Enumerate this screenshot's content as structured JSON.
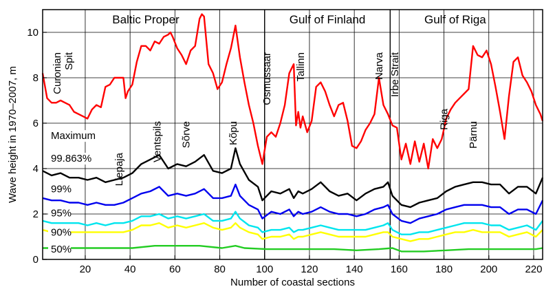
{
  "chart_data": {
    "type": "line",
    "title": "",
    "xlabel": "Number of coastal sections",
    "ylabel": "Wave height in 1970–2007, m",
    "xlim": [
      1,
      224
    ],
    "ylim": [
      0,
      11
    ],
    "xticks": [
      20,
      40,
      60,
      80,
      100,
      120,
      140,
      160,
      180,
      200,
      220
    ],
    "yticks": [
      0,
      2,
      4,
      6,
      8,
      10
    ],
    "grid": true,
    "regions": [
      {
        "label": "Baltic Proper",
        "x": 47
      },
      {
        "label": "Gulf of Finland",
        "x": 128
      },
      {
        "label": "Gulf of Riga",
        "x": 185
      }
    ],
    "region_dividers": [
      100,
      156
    ],
    "location_labels": [
      {
        "label": "Curonian Spit",
        "x": 8
      },
      {
        "label": "Liepaja",
        "x": 35
      },
      {
        "label": "Ventspils",
        "x": 52
      },
      {
        "label": "Sõrve",
        "x": 65
      },
      {
        "label": "Kõpu",
        "x": 86
      },
      {
        "label": "Osmussaar",
        "x": 101
      },
      {
        "label": "Tallinn",
        "x": 116
      },
      {
        "label": "Narva",
        "x": 151
      },
      {
        "label": "Irbe Strait",
        "x": 158
      },
      {
        "label": "Riga",
        "x": 180
      },
      {
        "label": "Pärnu",
        "x": 193
      }
    ],
    "series": [
      {
        "name": "Maximum",
        "color": "#ff0000",
        "x": [
          1,
          3,
          5,
          7,
          9,
          11,
          13,
          15,
          17,
          19,
          21,
          23,
          25,
          27,
          29,
          31,
          33,
          35,
          37,
          38,
          39,
          41,
          43,
          45,
          47,
          49,
          51,
          53,
          55,
          57,
          58,
          59,
          61,
          63,
          65,
          67,
          69,
          71,
          72,
          73,
          75,
          77,
          79,
          81,
          83,
          85,
          87,
          89,
          91,
          93,
          95,
          97,
          99,
          101,
          103,
          105,
          107,
          109,
          111,
          113,
          114,
          115,
          116,
          117,
          119,
          121,
          123,
          125,
          127,
          129,
          131,
          133,
          135,
          137,
          139,
          141,
          143,
          145,
          147,
          149,
          151,
          153,
          155,
          157,
          159,
          161,
          163,
          165,
          167,
          169,
          171,
          173,
          175,
          177,
          179,
          181,
          183,
          185,
          187,
          189,
          191,
          193,
          195,
          197,
          199,
          201,
          203,
          205,
          207,
          209,
          211,
          213,
          215,
          217,
          219,
          221,
          223,
          224
        ],
        "values": [
          8.2,
          7.1,
          6.9,
          6.9,
          7.0,
          6.9,
          6.8,
          6.5,
          6.4,
          6.3,
          6.2,
          6.6,
          6.8,
          6.7,
          7.6,
          7.7,
          8.0,
          8.0,
          8.0,
          7.1,
          7.4,
          7.7,
          8.7,
          9.4,
          9.4,
          9.2,
          9.6,
          9.5,
          9.8,
          9.9,
          10.0,
          9.8,
          9.3,
          9.0,
          8.6,
          9.2,
          9.4,
          10.6,
          10.8,
          10.7,
          8.6,
          8.2,
          7.5,
          7.8,
          8.6,
          9.3,
          10.3,
          8.9,
          7.8,
          6.8,
          6.0,
          5.0,
          4.2,
          5.4,
          5.6,
          5.4,
          6.0,
          6.8,
          8.2,
          8.6,
          5.9,
          6.5,
          5.8,
          6.3,
          5.6,
          6.1,
          7.6,
          7.8,
          7.4,
          6.8,
          6.3,
          6.8,
          6.9,
          6.1,
          5.0,
          4.9,
          5.2,
          5.7,
          6.0,
          6.4,
          8.0,
          6.8,
          6.4,
          5.9,
          5.8,
          4.4,
          5.1,
          4.2,
          5.2,
          4.3,
          5.1,
          4.0,
          5.3,
          4.9,
          5.3,
          6.2,
          6.6,
          6.9,
          7.1,
          7.3,
          7.5,
          9.4,
          9.0,
          8.9,
          9.2,
          8.6,
          7.6,
          6.5,
          5.3,
          7.2,
          8.7,
          8.9,
          8.1,
          7.8,
          7.4,
          6.8,
          6.4,
          6.1
        ]
      },
      {
        "name": "99.863%",
        "color": "#000000",
        "x": [
          1,
          5,
          9,
          13,
          17,
          21,
          25,
          29,
          33,
          37,
          41,
          45,
          49,
          53,
          57,
          61,
          65,
          69,
          73,
          77,
          81,
          85,
          87,
          89,
          93,
          97,
          99,
          103,
          107,
          111,
          113,
          115,
          117,
          121,
          125,
          129,
          133,
          137,
          141,
          145,
          149,
          153,
          155,
          157,
          161,
          165,
          169,
          173,
          177,
          181,
          185,
          189,
          193,
          197,
          201,
          205,
          209,
          213,
          217,
          221,
          224
        ],
        "values": [
          3.9,
          3.7,
          3.8,
          3.6,
          3.6,
          3.5,
          3.6,
          3.4,
          3.5,
          3.6,
          3.8,
          4.2,
          4.4,
          4.6,
          4.0,
          4.2,
          4.1,
          4.3,
          4.6,
          3.9,
          3.8,
          4.0,
          4.9,
          4.2,
          3.5,
          3.2,
          2.6,
          3.0,
          2.9,
          3.1,
          2.7,
          3.0,
          2.9,
          3.1,
          3.4,
          3.0,
          2.8,
          2.9,
          2.6,
          2.9,
          3.1,
          3.2,
          3.4,
          2.8,
          2.4,
          2.3,
          2.5,
          2.6,
          2.7,
          3.0,
          3.2,
          3.3,
          3.4,
          3.4,
          3.3,
          3.3,
          2.9,
          3.2,
          3.2,
          2.9,
          3.6
        ]
      },
      {
        "name": "99%",
        "color": "#0000ee",
        "x": [
          1,
          5,
          9,
          13,
          17,
          21,
          25,
          29,
          33,
          37,
          41,
          45,
          49,
          53,
          57,
          61,
          65,
          69,
          73,
          77,
          81,
          85,
          87,
          89,
          93,
          97,
          99,
          103,
          107,
          111,
          113,
          115,
          117,
          121,
          125,
          129,
          133,
          137,
          141,
          145,
          149,
          153,
          155,
          157,
          161,
          165,
          169,
          173,
          177,
          181,
          185,
          189,
          193,
          197,
          201,
          205,
          209,
          213,
          217,
          221,
          224
        ],
        "values": [
          2.7,
          2.6,
          2.6,
          2.5,
          2.5,
          2.4,
          2.5,
          2.4,
          2.4,
          2.5,
          2.7,
          2.9,
          3.0,
          3.2,
          2.8,
          2.9,
          2.8,
          2.9,
          3.1,
          2.7,
          2.7,
          2.8,
          3.3,
          2.8,
          2.4,
          2.2,
          1.8,
          2.1,
          2.0,
          2.2,
          1.9,
          2.1,
          2.0,
          2.1,
          2.3,
          2.1,
          2.0,
          2.0,
          1.9,
          2.0,
          2.2,
          2.3,
          2.4,
          2.0,
          1.7,
          1.6,
          1.8,
          1.9,
          2.0,
          2.2,
          2.3,
          2.4,
          2.4,
          2.4,
          2.3,
          2.3,
          2.0,
          2.2,
          2.2,
          2.0,
          2.6
        ]
      },
      {
        "name": "95%",
        "color": "#00e5ee",
        "x": [
          1,
          5,
          9,
          13,
          17,
          21,
          25,
          29,
          33,
          37,
          41,
          45,
          49,
          53,
          57,
          61,
          65,
          69,
          73,
          77,
          81,
          85,
          87,
          89,
          93,
          97,
          99,
          103,
          107,
          111,
          113,
          115,
          117,
          121,
          125,
          129,
          133,
          137,
          141,
          145,
          149,
          153,
          155,
          157,
          161,
          165,
          169,
          173,
          177,
          181,
          185,
          189,
          193,
          197,
          201,
          205,
          209,
          213,
          217,
          221,
          224
        ],
        "values": [
          1.7,
          1.6,
          1.6,
          1.6,
          1.6,
          1.5,
          1.6,
          1.5,
          1.6,
          1.6,
          1.7,
          1.9,
          1.9,
          2.0,
          1.8,
          1.9,
          1.8,
          1.9,
          2.0,
          1.7,
          1.7,
          1.8,
          2.1,
          1.8,
          1.5,
          1.4,
          1.2,
          1.3,
          1.3,
          1.4,
          1.2,
          1.3,
          1.3,
          1.4,
          1.5,
          1.4,
          1.3,
          1.3,
          1.3,
          1.3,
          1.4,
          1.5,
          1.6,
          1.3,
          1.1,
          1.1,
          1.2,
          1.2,
          1.3,
          1.4,
          1.5,
          1.6,
          1.6,
          1.6,
          1.5,
          1.5,
          1.3,
          1.4,
          1.5,
          1.3,
          1.7
        ]
      },
      {
        "name": "90%",
        "color": "#ffff00",
        "x": [
          1,
          5,
          9,
          13,
          17,
          21,
          25,
          29,
          33,
          37,
          41,
          45,
          49,
          53,
          57,
          61,
          65,
          69,
          73,
          77,
          81,
          85,
          87,
          89,
          93,
          97,
          99,
          103,
          107,
          111,
          113,
          115,
          117,
          121,
          125,
          129,
          133,
          137,
          141,
          145,
          149,
          153,
          155,
          157,
          161,
          165,
          169,
          173,
          177,
          181,
          185,
          189,
          193,
          197,
          201,
          205,
          209,
          213,
          217,
          221,
          224
        ],
        "values": [
          1.3,
          1.2,
          1.2,
          1.2,
          1.2,
          1.2,
          1.2,
          1.2,
          1.2,
          1.2,
          1.3,
          1.5,
          1.5,
          1.6,
          1.4,
          1.5,
          1.4,
          1.5,
          1.6,
          1.4,
          1.3,
          1.4,
          1.6,
          1.4,
          1.2,
          1.1,
          0.9,
          1.0,
          1.0,
          1.1,
          0.9,
          1.0,
          1.0,
          1.1,
          1.2,
          1.1,
          1.0,
          1.0,
          1.0,
          1.0,
          1.1,
          1.2,
          1.2,
          1.0,
          0.9,
          0.8,
          0.9,
          0.9,
          1.0,
          1.1,
          1.2,
          1.2,
          1.3,
          1.2,
          1.2,
          1.2,
          1.0,
          1.1,
          1.2,
          1.0,
          1.3
        ]
      },
      {
        "name": "50%",
        "color": "#22cc22",
        "x": [
          1,
          11,
          21,
          31,
          41,
          51,
          61,
          71,
          81,
          87,
          91,
          101,
          111,
          121,
          131,
          141,
          151,
          157,
          161,
          171,
          181,
          191,
          201,
          211,
          221,
          224
        ],
        "values": [
          0.5,
          0.5,
          0.5,
          0.5,
          0.5,
          0.6,
          0.6,
          0.6,
          0.5,
          0.6,
          0.5,
          0.45,
          0.45,
          0.45,
          0.45,
          0.4,
          0.45,
          0.5,
          0.35,
          0.35,
          0.4,
          0.45,
          0.45,
          0.45,
          0.45,
          0.5
        ]
      }
    ]
  }
}
